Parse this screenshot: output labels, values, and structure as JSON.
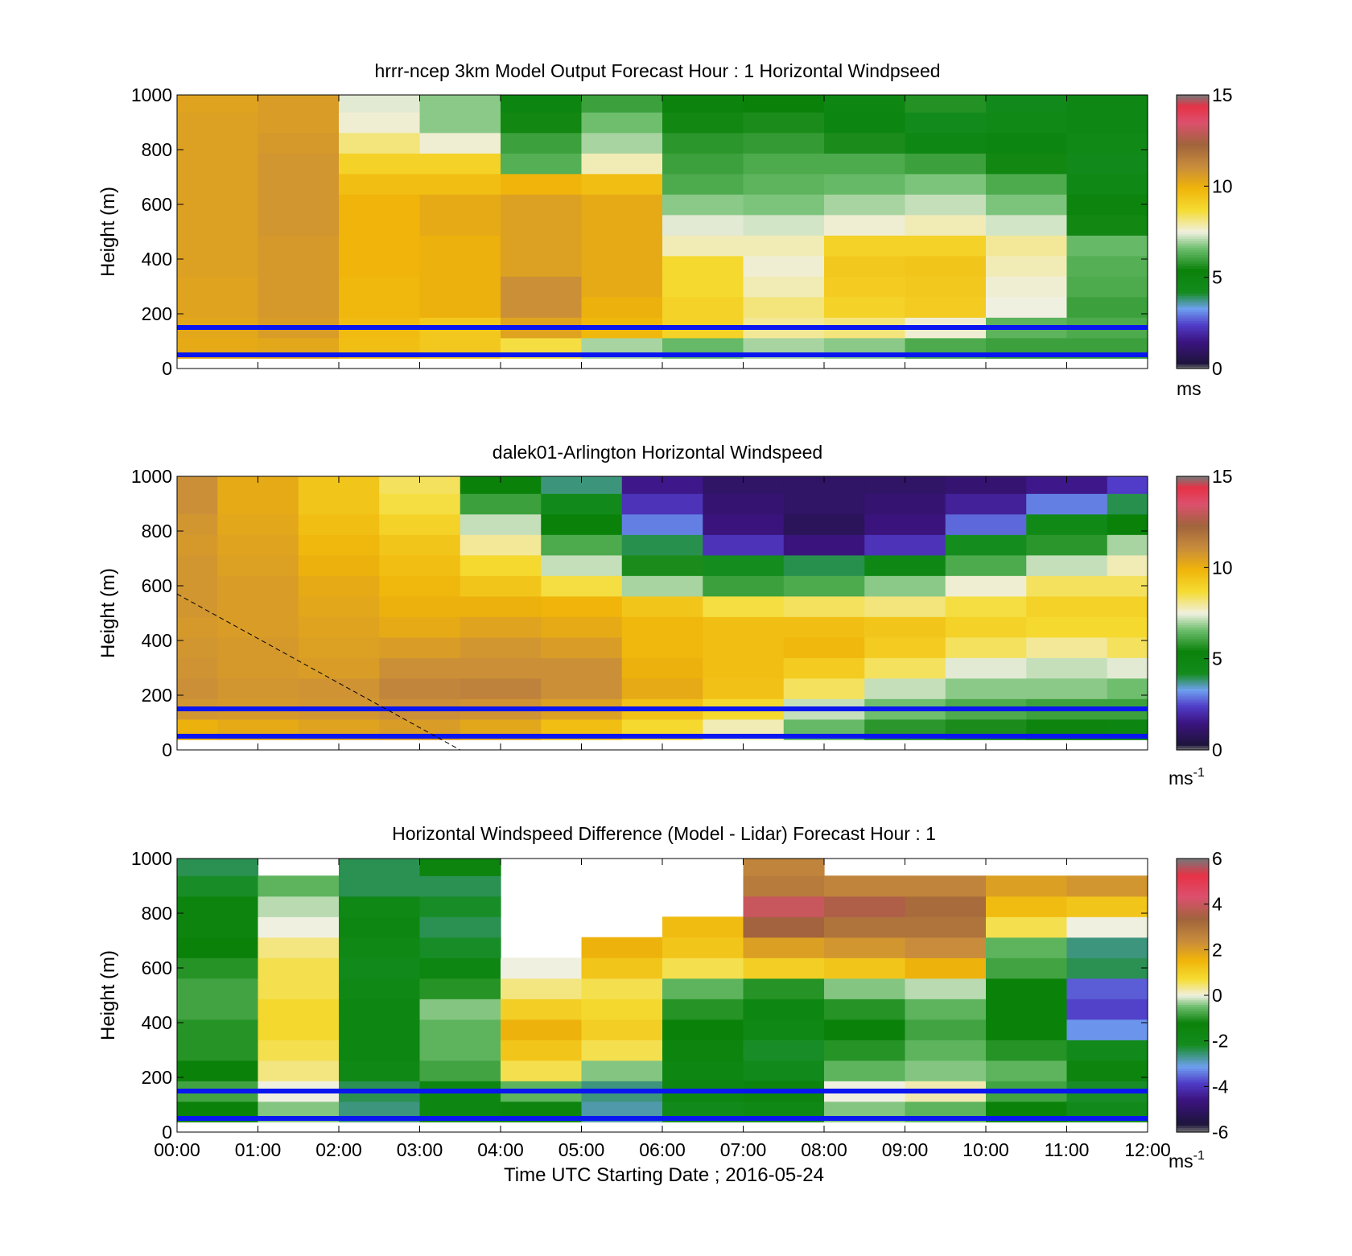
{
  "figure": {
    "xlabel": "Time UTC  Starting Date ; 2016-05-24",
    "xticks": [
      "00:00",
      "01:00",
      "02:00",
      "03:00",
      "04:00",
      "05:00",
      "06:00",
      "07:00",
      "08:00",
      "09:00",
      "10:00",
      "11:00",
      "12:00"
    ]
  },
  "chart_data": [
    {
      "type": "heatmap",
      "title": "hrrr-ncep 3km Model Output   Forecast Hour : 1 Horizontal Windpseed",
      "ylabel": "Height (m)",
      "xlim": [
        0,
        12
      ],
      "ylim": [
        0,
        1000
      ],
      "yticks": [
        0,
        200,
        400,
        600,
        800,
        1000
      ],
      "colorbar": {
        "min": 0,
        "max": 15,
        "ticks": [
          0,
          5,
          10,
          15
        ],
        "unit": "ms",
        "unit_sup": ""
      },
      "reference_lines_m": [
        150,
        50
      ],
      "times_h": [
        0,
        1,
        2,
        3,
        4,
        5,
        6,
        7,
        8,
        9,
        10,
        11
      ],
      "heights_m": [
        75,
        150,
        225,
        300,
        375,
        450,
        525,
        600,
        675,
        750,
        825,
        900,
        975
      ],
      "values": [
        [
          10.2,
          10.3,
          9.6,
          9.3,
          8.6,
          7.0,
          6.5,
          7.0,
          6.8,
          6.2,
          6.0,
          6.0
        ],
        [
          10.3,
          10.6,
          9.7,
          9.3,
          10.4,
          9.8,
          9.0,
          8.0,
          8.2,
          7.6,
          6.4,
          6.2
        ],
        [
          10.4,
          10.7,
          9.8,
          10.0,
          11.0,
          10.0,
          9.0,
          8.2,
          9.0,
          9.2,
          7.5,
          6.0
        ],
        [
          10.4,
          10.7,
          9.8,
          10.0,
          11.0,
          10.2,
          8.8,
          7.8,
          9.2,
          9.3,
          7.6,
          6.2
        ],
        [
          10.5,
          10.7,
          9.9,
          10.0,
          10.5,
          10.2,
          8.8,
          7.6,
          9.3,
          9.4,
          7.8,
          6.3
        ],
        [
          10.5,
          10.7,
          9.9,
          10.0,
          10.5,
          10.2,
          7.8,
          7.8,
          9.0,
          9.0,
          8.0,
          6.5
        ],
        [
          10.5,
          10.8,
          9.9,
          10.2,
          10.5,
          10.2,
          7.4,
          7.3,
          7.6,
          7.8,
          7.3,
          5.5
        ],
        [
          10.5,
          10.8,
          9.9,
          10.2,
          10.5,
          10.2,
          6.8,
          6.7,
          7.0,
          7.2,
          6.7,
          5.2
        ],
        [
          10.5,
          10.8,
          9.6,
          9.6,
          9.9,
          9.6,
          6.2,
          6.4,
          6.5,
          6.7,
          6.2,
          4.7
        ],
        [
          10.5,
          10.8,
          9.0,
          9.0,
          6.3,
          7.8,
          6.0,
          6.2,
          6.2,
          6.0,
          5.5,
          4.4
        ],
        [
          10.5,
          10.7,
          8.2,
          7.6,
          6.0,
          7.0,
          5.8,
          5.9,
          5.6,
          4.8,
          5.0,
          4.6
        ],
        [
          10.5,
          10.6,
          7.6,
          6.8,
          5.5,
          6.6,
          5.5,
          5.6,
          5.0,
          4.3,
          4.6,
          4.8
        ],
        [
          10.4,
          10.6,
          7.4,
          6.8,
          5.0,
          6.0,
          5.3,
          5.4,
          4.9,
          5.7,
          4.4,
          4.8
        ]
      ]
    },
    {
      "type": "heatmap",
      "title": "dalek01-Arlington  Horizontal Windspeed",
      "ylabel": "Height (m)",
      "xlim": [
        0,
        12
      ],
      "ylim": [
        0,
        1000
      ],
      "yticks": [
        0,
        200,
        400,
        600,
        800,
        1000
      ],
      "colorbar": {
        "min": 0,
        "max": 15,
        "ticks": [
          0,
          5,
          10,
          15
        ],
        "unit": "ms",
        "unit_sup": "-1"
      },
      "reference_lines_m": [
        150,
        50
      ],
      "dashed_line": {
        "from": [
          0,
          570
        ],
        "to": [
          3.5,
          0
        ]
      },
      "times_h": [
        0,
        1,
        2,
        3,
        4,
        5,
        6,
        7,
        8,
        9,
        10,
        11,
        12
      ],
      "heights_m": [
        75,
        150,
        225,
        300,
        375,
        450,
        525,
        600,
        675,
        750,
        825,
        900,
        975
      ],
      "values": [
        [
          10.0,
          10.2,
          10.4,
          10.6,
          10.3,
          9.6,
          8.8,
          7.8,
          6.5,
          5.8,
          5.6,
          5.2,
          5.0
        ],
        [
          10.8,
          10.7,
          10.8,
          11.0,
          10.9,
          10.5,
          9.5,
          8.8,
          7.2,
          6.6,
          6.2,
          6.0,
          6.0
        ],
        [
          11.0,
          10.8,
          10.9,
          11.3,
          11.4,
          11.0,
          10.2,
          9.5,
          8.4,
          7.2,
          6.8,
          6.8,
          6.6
        ],
        [
          10.9,
          10.7,
          10.6,
          11.0,
          11.0,
          11.0,
          10.0,
          9.6,
          9.2,
          8.4,
          7.4,
          7.2,
          7.4
        ],
        [
          10.8,
          10.7,
          10.5,
          10.6,
          10.8,
          10.6,
          9.8,
          9.6,
          9.8,
          9.2,
          8.4,
          8.0,
          8.4
        ],
        [
          10.7,
          10.6,
          10.4,
          10.2,
          10.4,
          10.2,
          9.8,
          9.6,
          9.6,
          9.4,
          9.0,
          8.8,
          8.8
        ],
        [
          10.8,
          10.6,
          10.3,
          10.0,
          10.0,
          9.9,
          9.4,
          8.6,
          8.4,
          8.2,
          8.6,
          9.0,
          9.0
        ],
        [
          10.8,
          10.6,
          10.2,
          9.8,
          9.4,
          8.6,
          7.0,
          6.0,
          6.2,
          6.8,
          7.6,
          8.4,
          8.4
        ],
        [
          10.8,
          10.5,
          10.0,
          9.6,
          8.8,
          7.2,
          5.6,
          4.2,
          4.0,
          4.8,
          6.2,
          7.2,
          7.8
        ],
        [
          10.7,
          10.4,
          9.8,
          9.4,
          8.0,
          6.2,
          4.0,
          2.2,
          1.4,
          2.2,
          4.2,
          5.8,
          7.0
        ],
        [
          10.8,
          10.3,
          9.6,
          9.0,
          7.2,
          5.4,
          3.0,
          1.4,
          0.8,
          1.4,
          2.8,
          4.6,
          5.4
        ],
        [
          11.0,
          10.2,
          9.4,
          8.6,
          6.0,
          4.4,
          2.2,
          1.2,
          1.0,
          1.2,
          1.8,
          3.0,
          4.0
        ],
        [
          11.0,
          10.2,
          9.4,
          8.4,
          5.4,
          3.8,
          1.6,
          1.0,
          1.0,
          1.0,
          1.2,
          1.6,
          2.4
        ]
      ]
    },
    {
      "type": "heatmap",
      "title": "Horizontal Windspeed Difference (Model - Lidar) Forecast Hour : 1",
      "ylabel": "Height (m)",
      "xlim": [
        0,
        12
      ],
      "ylim": [
        0,
        1000
      ],
      "yticks": [
        0,
        200,
        400,
        600,
        800,
        1000
      ],
      "colorbar": {
        "min": -6,
        "max": 6,
        "ticks": [
          -6,
          -4,
          -2,
          0,
          2,
          4,
          6
        ],
        "unit": "ms",
        "unit_sup": "-1"
      },
      "reference_lines_m": [
        150,
        50
      ],
      "times_h": [
        0,
        1,
        2,
        3,
        4,
        5,
        6,
        7,
        8,
        9,
        10,
        11
      ],
      "heights_m": [
        75,
        150,
        225,
        300,
        375,
        450,
        525,
        600,
        675,
        750,
        825,
        900,
        975
      ],
      "values": [
        [
          -1.2,
          -0.4,
          -2.6,
          -1.6,
          -1.4,
          -2.8,
          -2.0,
          -1.8,
          -0.4,
          -0.6,
          -1.2,
          -2.0
        ],
        [
          -0.8,
          0.0,
          -2.4,
          -1.6,
          -0.6,
          -2.6,
          -1.6,
          -1.4,
          0.0,
          0.2,
          -0.8,
          -2.2
        ],
        [
          -1.2,
          0.4,
          -1.8,
          -0.8,
          0.6,
          -0.4,
          -1.6,
          -2.0,
          -0.6,
          -0.4,
          -0.6,
          -1.4
        ],
        [
          -1.0,
          0.6,
          -1.6,
          -0.6,
          1.2,
          0.6,
          -1.4,
          -2.2,
          -1.0,
          -0.6,
          -1.0,
          -2.0
        ],
        [
          -1.0,
          0.8,
          -1.6,
          -0.6,
          1.6,
          1.0,
          -1.2,
          -1.8,
          -1.2,
          -0.8,
          -1.2,
          -3.2
        ],
        [
          -0.8,
          0.8,
          -1.6,
          -0.4,
          1.0,
          0.8,
          -1.0,
          -1.6,
          -1.0,
          -0.6,
          -1.2,
          -3.8
        ],
        [
          -0.8,
          0.6,
          -1.8,
          -1.0,
          0.4,
          0.6,
          -0.6,
          -1.0,
          -0.4,
          -0.2,
          -1.2,
          -3.6
        ],
        [
          -1.0,
          0.6,
          -2.0,
          -1.6,
          0.0,
          1.2,
          0.6,
          1.0,
          1.2,
          1.6,
          -0.8,
          -2.4
        ],
        [
          -1.2,
          0.4,
          -1.8,
          -2.2,
          null,
          1.6,
          1.2,
          2.0,
          2.2,
          2.4,
          -0.6,
          -2.6
        ],
        [
          -1.4,
          0.0,
          -1.6,
          -2.4,
          null,
          null,
          1.4,
          3.4,
          3.0,
          3.0,
          0.6,
          0.0
        ],
        [
          -1.4,
          -0.2,
          -1.8,
          -2.2,
          null,
          null,
          null,
          4.0,
          3.6,
          3.2,
          1.4,
          1.2
        ],
        [
          -2.2,
          -0.6,
          -2.4,
          -2.4,
          null,
          null,
          null,
          2.8,
          2.6,
          2.6,
          2.0,
          2.2
        ],
        [
          -2.4,
          null,
          -2.4,
          -1.4,
          null,
          null,
          null,
          2.6,
          null,
          null,
          null,
          null
        ]
      ]
    }
  ]
}
